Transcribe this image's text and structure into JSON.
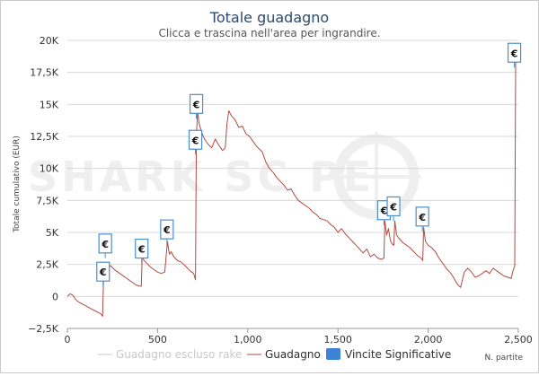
{
  "colors": {
    "line": "#b04b43",
    "excluded_rake": "#c8c8c8",
    "marker_border": "#4a8fc9",
    "legend_blue": "#3d82d6",
    "title": "#2d4a6d",
    "watermark": "#efefef"
  },
  "chart_data": {
    "type": "line",
    "title": "Totale guadagno",
    "subtitle": "Clicca e trascina nell'area per ingrandire.",
    "xlabel": "N. partite",
    "ylabel": "Totale cumulativo (EUR)",
    "xlim": [
      0,
      2500
    ],
    "ylim": [
      -2500,
      20000
    ],
    "grid": "horizontal",
    "x_ticks": [
      {
        "v": 0,
        "label": "0"
      },
      {
        "v": 500,
        "label": "500"
      },
      {
        "v": 1000,
        "label": "1,000"
      },
      {
        "v": 1500,
        "label": "1,500"
      },
      {
        "v": 2000,
        "label": "2,000"
      },
      {
        "v": 2500,
        "label": "2,500"
      }
    ],
    "y_ticks": [
      {
        "v": 20000,
        "label": "20K"
      },
      {
        "v": 17500,
        "label": "17,5K"
      },
      {
        "v": 15000,
        "label": "15K"
      },
      {
        "v": 12500,
        "label": "12,5K"
      },
      {
        "v": 10000,
        "label": "10K"
      },
      {
        "v": 7500,
        "label": "7,5K"
      },
      {
        "v": 5000,
        "label": "5K"
      },
      {
        "v": 2500,
        "label": "2,5K"
      },
      {
        "v": 0,
        "label": "0"
      },
      {
        "v": -2500,
        "label": "−2,5K"
      }
    ],
    "series": [
      {
        "name": "Guadagno",
        "points": [
          [
            0,
            0
          ],
          [
            15,
            200
          ],
          [
            30,
            100
          ],
          [
            50,
            -300
          ],
          [
            70,
            -500
          ],
          [
            90,
            -650
          ],
          [
            110,
            -800
          ],
          [
            130,
            -950
          ],
          [
            150,
            -1100
          ],
          [
            170,
            -1250
          ],
          [
            185,
            -1350
          ],
          [
            195,
            -1550
          ],
          [
            200,
            1200
          ],
          [
            205,
            1300
          ],
          [
            210,
            2200
          ],
          [
            215,
            1500
          ],
          [
            220,
            2200
          ],
          [
            240,
            2400
          ],
          [
            260,
            2100
          ],
          [
            280,
            1900
          ],
          [
            300,
            1700
          ],
          [
            320,
            1500
          ],
          [
            340,
            1300
          ],
          [
            360,
            1100
          ],
          [
            380,
            900
          ],
          [
            400,
            800
          ],
          [
            410,
            800
          ],
          [
            415,
            3200
          ],
          [
            425,
            2800
          ],
          [
            440,
            2600
          ],
          [
            460,
            2300
          ],
          [
            480,
            2100
          ],
          [
            500,
            1900
          ],
          [
            520,
            1800
          ],
          [
            540,
            1900
          ],
          [
            555,
            4300
          ],
          [
            565,
            3300
          ],
          [
            575,
            3500
          ],
          [
            590,
            3100
          ],
          [
            610,
            2800
          ],
          [
            630,
            2700
          ],
          [
            660,
            2300
          ],
          [
            680,
            2000
          ],
          [
            700,
            1800
          ],
          [
            710,
            1300
          ],
          [
            715,
            12500
          ],
          [
            722,
            14500
          ],
          [
            730,
            13500
          ],
          [
            745,
            12800
          ],
          [
            760,
            12300
          ],
          [
            780,
            11900
          ],
          [
            800,
            11600
          ],
          [
            820,
            12300
          ],
          [
            840,
            11800
          ],
          [
            860,
            11400
          ],
          [
            875,
            11600
          ],
          [
            885,
            13500
          ],
          [
            895,
            14500
          ],
          [
            910,
            14100
          ],
          [
            930,
            13800
          ],
          [
            950,
            13200
          ],
          [
            970,
            13300
          ],
          [
            990,
            12700
          ],
          [
            1010,
            12500
          ],
          [
            1030,
            12100
          ],
          [
            1050,
            11700
          ],
          [
            1080,
            11300
          ],
          [
            1100,
            10500
          ],
          [
            1120,
            10000
          ],
          [
            1140,
            9700
          ],
          [
            1160,
            9300
          ],
          [
            1180,
            9000
          ],
          [
            1200,
            8700
          ],
          [
            1220,
            8300
          ],
          [
            1240,
            8400
          ],
          [
            1260,
            7900
          ],
          [
            1280,
            7500
          ],
          [
            1300,
            7300
          ],
          [
            1320,
            7100
          ],
          [
            1340,
            6900
          ],
          [
            1360,
            6600
          ],
          [
            1380,
            6400
          ],
          [
            1400,
            6100
          ],
          [
            1420,
            6000
          ],
          [
            1440,
            5900
          ],
          [
            1460,
            5600
          ],
          [
            1480,
            5400
          ],
          [
            1500,
            5000
          ],
          [
            1520,
            5300
          ],
          [
            1540,
            4900
          ],
          [
            1560,
            4600
          ],
          [
            1580,
            4300
          ],
          [
            1600,
            4000
          ],
          [
            1620,
            3700
          ],
          [
            1640,
            3400
          ],
          [
            1660,
            3700
          ],
          [
            1680,
            3100
          ],
          [
            1700,
            3300
          ],
          [
            1720,
            3000
          ],
          [
            1740,
            2900
          ],
          [
            1755,
            3000
          ],
          [
            1760,
            5900
          ],
          [
            1770,
            4800
          ],
          [
            1780,
            5300
          ],
          [
            1790,
            4400
          ],
          [
            1800,
            4100
          ],
          [
            1810,
            4000
          ],
          [
            1815,
            5900
          ],
          [
            1825,
            4800
          ],
          [
            1840,
            4500
          ],
          [
            1860,
            4200
          ],
          [
            1880,
            4000
          ],
          [
            1900,
            3800
          ],
          [
            1920,
            3500
          ],
          [
            1940,
            3200
          ],
          [
            1960,
            3000
          ],
          [
            1970,
            2800
          ],
          [
            1975,
            5400
          ],
          [
            1985,
            4300
          ],
          [
            2000,
            4000
          ],
          [
            2020,
            3800
          ],
          [
            2040,
            3500
          ],
          [
            2060,
            3000
          ],
          [
            2080,
            2600
          ],
          [
            2100,
            2200
          ],
          [
            2120,
            1900
          ],
          [
            2140,
            1500
          ],
          [
            2160,
            1000
          ],
          [
            2180,
            700
          ],
          [
            2200,
            1900
          ],
          [
            2220,
            2200
          ],
          [
            2240,
            1900
          ],
          [
            2260,
            1500
          ],
          [
            2280,
            1600
          ],
          [
            2300,
            1800
          ],
          [
            2320,
            2000
          ],
          [
            2340,
            1800
          ],
          [
            2360,
            2200
          ],
          [
            2380,
            2000
          ],
          [
            2400,
            1800
          ],
          [
            2420,
            1600
          ],
          [
            2440,
            1500
          ],
          [
            2460,
            1400
          ],
          [
            2470,
            2000
          ],
          [
            2480,
            2400
          ],
          [
            2485,
            18500
          ],
          [
            2492,
            19200
          ]
        ]
      }
    ],
    "significant_wins": [
      {
        "x": 198,
        "y": 1200,
        "label": "€"
      },
      {
        "x": 210,
        "y": 3400,
        "label": "€"
      },
      {
        "x": 412,
        "y": 3000,
        "label": "€"
      },
      {
        "x": 552,
        "y": 4500,
        "label": "€"
      },
      {
        "x": 710,
        "y": 11500,
        "label": "€"
      },
      {
        "x": 715,
        "y": 14300,
        "label": "€"
      },
      {
        "x": 1755,
        "y": 6000,
        "label": "€"
      },
      {
        "x": 1808,
        "y": 6300,
        "label": "€"
      },
      {
        "x": 1968,
        "y": 5500,
        "label": "€"
      },
      {
        "x": 2478,
        "y": 18300,
        "label": "€"
      }
    ],
    "legend": {
      "position": "bottom",
      "items": [
        {
          "key": "excluded",
          "label": "Guadagno escluso rake"
        },
        {
          "key": "guadagno",
          "label": "Guadagno"
        },
        {
          "key": "vincite",
          "label": "Vincite Significative"
        }
      ]
    }
  },
  "watermark_text": "SHARK SC   PE"
}
